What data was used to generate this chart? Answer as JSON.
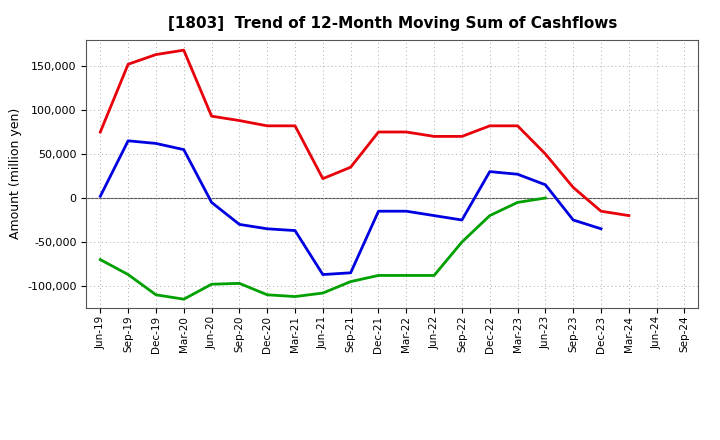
{
  "title": "[1803]  Trend of 12-Month Moving Sum of Cashflows",
  "ylabel": "Amount (million yen)",
  "x_labels": [
    "Jun-19",
    "Sep-19",
    "Dec-19",
    "Mar-20",
    "Jun-20",
    "Sep-20",
    "Dec-20",
    "Mar-21",
    "Jun-21",
    "Sep-21",
    "Dec-21",
    "Mar-22",
    "Jun-22",
    "Sep-22",
    "Dec-22",
    "Mar-23",
    "Jun-23",
    "Sep-23",
    "Dec-23",
    "Mar-24",
    "Jun-24",
    "Sep-24"
  ],
  "operating_cashflow": [
    75000,
    152000,
    163000,
    168000,
    93000,
    88000,
    82000,
    82000,
    22000,
    35000,
    75000,
    75000,
    70000,
    70000,
    82000,
    82000,
    50000,
    12000,
    -15000,
    -20000,
    null,
    null
  ],
  "investing_cashflow": [
    -70000,
    -87000,
    -110000,
    -115000,
    -98000,
    -97000,
    -110000,
    -112000,
    -108000,
    -95000,
    -88000,
    -88000,
    -88000,
    -50000,
    -20000,
    -5000,
    0,
    null,
    null,
    null,
    null,
    null
  ],
  "free_cashflow": [
    2000,
    65000,
    62000,
    55000,
    -5000,
    -30000,
    -35000,
    -37000,
    -87000,
    -85000,
    -15000,
    -15000,
    -20000,
    -25000,
    30000,
    27000,
    15000,
    -25000,
    -35000,
    null,
    null,
    null
  ],
  "ylim": [
    -125000,
    180000
  ],
  "yticks": [
    -100000,
    -50000,
    0,
    50000,
    100000,
    150000
  ],
  "op_color": "#e8000a",
  "inv_color": "#00a000",
  "free_color": "#0000e0",
  "line_width": 2.0,
  "grid_color": "#aaaaaa",
  "background_color": "#ffffff"
}
